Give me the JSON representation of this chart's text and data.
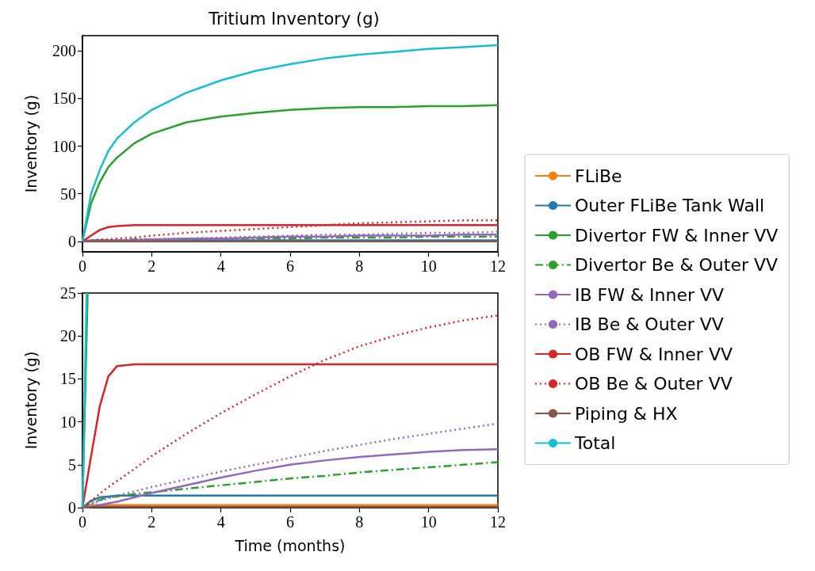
{
  "chart_data": [
    {
      "type": "line",
      "title": "Tritium Inventory (g)",
      "ylabel": "Inventory (g)",
      "x": [
        0,
        0.25,
        0.5,
        0.75,
        1,
        1.5,
        2,
        3,
        4,
        5,
        6,
        7,
        8,
        9,
        10,
        11,
        12
      ],
      "xlim": [
        0,
        12
      ],
      "xticks": [
        0,
        2,
        4,
        6,
        8,
        10,
        12
      ],
      "ylim": [
        -11,
        216
      ],
      "yticks": [
        0,
        50,
        100,
        150,
        200
      ],
      "grid": false,
      "marker": "none",
      "series": [
        {
          "color": "#1f77b4",
          "line_style": "solid",
          "values": [
            0,
            1,
            1,
            1,
            1,
            1,
            1,
            1,
            1,
            1,
            1,
            1,
            1,
            1,
            1,
            1,
            1
          ]
        },
        {
          "color": "#2ca02c",
          "line_style": "solid",
          "values": [
            0,
            40,
            62,
            78,
            88,
            103,
            113,
            125,
            131,
            135,
            138,
            140,
            141,
            141,
            142,
            142,
            143
          ]
        },
        {
          "color": "#2ca02c",
          "line_style": "dashdot",
          "values": [
            0,
            0,
            1,
            1,
            1,
            2,
            2,
            2,
            3,
            3,
            3,
            4,
            4,
            4,
            5,
            5,
            5
          ]
        },
        {
          "color": "#9467bd",
          "line_style": "solid",
          "values": [
            0,
            0,
            0,
            0,
            1,
            1,
            2,
            3,
            3,
            4,
            5,
            5,
            6,
            6,
            6,
            7,
            7
          ]
        },
        {
          "color": "#9467bd",
          "line_style": "dotted",
          "values": [
            0,
            0,
            1,
            1,
            1,
            2,
            2,
            3,
            4,
            5,
            6,
            7,
            7,
            8,
            9,
            9,
            10
          ]
        },
        {
          "color": "#d62728",
          "line_style": "solid",
          "values": [
            0,
            6,
            12,
            15,
            16,
            17,
            17,
            17,
            17,
            17,
            17,
            17,
            17,
            17,
            17,
            17,
            17
          ]
        },
        {
          "color": "#d62728",
          "line_style": "dotted",
          "values": [
            0,
            1,
            2,
            2,
            3,
            4,
            6,
            9,
            11,
            13,
            15,
            17,
            19,
            20,
            21,
            22,
            22
          ]
        },
        {
          "color": "#8c564b",
          "line_style": "solid",
          "values": [
            0,
            0,
            0,
            0,
            0,
            0,
            0,
            0,
            0,
            0,
            0,
            0,
            0,
            0,
            0,
            0,
            0
          ]
        },
        {
          "color": "#17becf",
          "line_style": "solid",
          "values": [
            0,
            50,
            75,
            95,
            108,
            125,
            138,
            156,
            169,
            179,
            186,
            192,
            196,
            199,
            202,
            204,
            206
          ]
        }
      ]
    },
    {
      "type": "line",
      "xlabel": "Time (months)",
      "ylabel": "Inventory (g)",
      "x": [
        0,
        0.25,
        0.5,
        0.75,
        1,
        1.5,
        2,
        3,
        4,
        5,
        6,
        7,
        8,
        9,
        10,
        11,
        12
      ],
      "xlim": [
        0,
        12
      ],
      "xticks": [
        0,
        2,
        4,
        6,
        8,
        10,
        12
      ],
      "ylim": [
        0,
        25
      ],
      "yticks": [
        0,
        5,
        10,
        15,
        20,
        25
      ],
      "grid": false,
      "marker": "none",
      "legend": "right",
      "series": [
        {
          "name": "FLiBe",
          "color": "#ff7f0e",
          "line_style": "solid",
          "values": [
            0,
            0.3,
            0.3,
            0.3,
            0.3,
            0.3,
            0.3,
            0.3,
            0.3,
            0.3,
            0.3,
            0.3,
            0.3,
            0.3,
            0.3,
            0.3,
            0.3
          ]
        },
        {
          "name": "Outer FLiBe Tank Wall",
          "color": "#1f77b4",
          "line_style": "solid",
          "values": [
            0,
            0.8,
            1.2,
            1.3,
            1.4,
            1.4,
            1.4,
            1.4,
            1.4,
            1.4,
            1.4,
            1.4,
            1.4,
            1.4,
            1.4,
            1.4,
            1.4
          ]
        },
        {
          "name": "Divertor FW & Inner VV",
          "color": "#2ca02c",
          "line_style": "solid",
          "x": [
            0,
            0.15
          ],
          "values": [
            0,
            25
          ]
        },
        {
          "name": "Divertor Be & Outer VV",
          "color": "#2ca02c",
          "line_style": "dashdot",
          "values": [
            0,
            0.5,
            0.9,
            1.2,
            1.3,
            1.6,
            1.8,
            2.2,
            2.6,
            3.0,
            3.4,
            3.7,
            4.1,
            4.4,
            4.7,
            5.0,
            5.3
          ]
        },
        {
          "name": "IB FW & Inner VV",
          "color": "#9467bd",
          "line_style": "solid",
          "values": [
            0,
            0.1,
            0.3,
            0.5,
            0.7,
            1.2,
            1.7,
            2.6,
            3.5,
            4.3,
            5.0,
            5.5,
            5.9,
            6.2,
            6.5,
            6.7,
            6.8
          ]
        },
        {
          "name": "IB Be & Outer VV",
          "color": "#9467bd",
          "line_style": "dotted",
          "values": [
            0,
            0.4,
            0.8,
            1.1,
            1.4,
            1.9,
            2.4,
            3.3,
            4.2,
            5.0,
            5.8,
            6.6,
            7.3,
            8.0,
            8.6,
            9.2,
            9.8
          ]
        },
        {
          "name": "OB FW & Inner VV",
          "color": "#d62728",
          "line_style": "solid",
          "values": [
            0,
            6,
            11.8,
            15.3,
            16.5,
            16.7,
            16.7,
            16.7,
            16.7,
            16.7,
            16.7,
            16.7,
            16.7,
            16.7,
            16.7,
            16.7,
            16.7
          ]
        },
        {
          "name": "OB Be & Outer VV",
          "color": "#d62728",
          "line_style": "dotted",
          "values": [
            0,
            0.8,
            1.6,
            2.4,
            3.1,
            4.5,
            6.0,
            8.6,
            11.0,
            13.2,
            15.3,
            17.2,
            18.8,
            20.0,
            21.0,
            21.8,
            22.4
          ]
        },
        {
          "name": "Piping & HX",
          "color": "#8c564b",
          "line_style": "solid",
          "values": [
            0,
            0.1,
            0.1,
            0.1,
            0.1,
            0.1,
            0.1,
            0.1,
            0.1,
            0.1,
            0.1,
            0.1,
            0.1,
            0.1,
            0.1,
            0.1,
            0.1
          ]
        },
        {
          "name": "Total",
          "color": "#17becf",
          "line_style": "solid",
          "x": [
            0,
            0.12
          ],
          "values": [
            0,
            25
          ]
        }
      ]
    }
  ]
}
